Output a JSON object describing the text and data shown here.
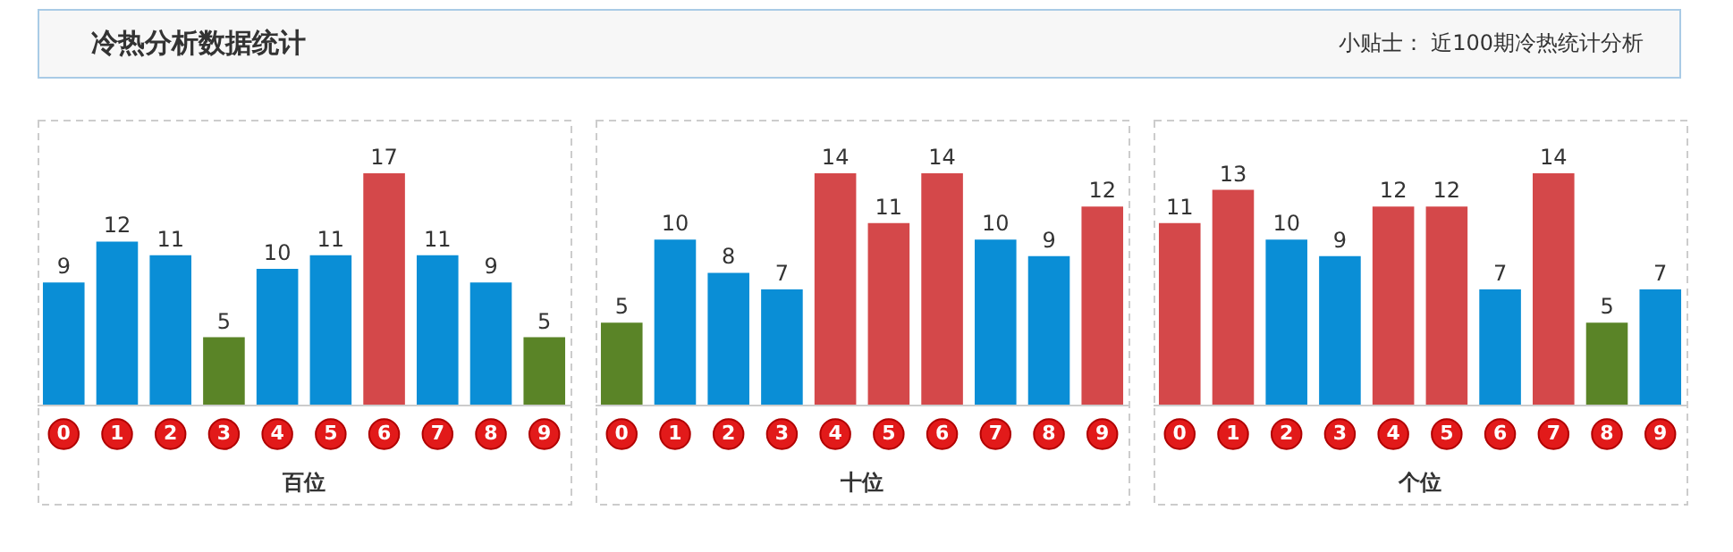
{
  "chart_data": [
    {
      "type": "bar",
      "title": "冷热分析数据统计",
      "annotations": [
        "小贴士： 近100期冷热统计分析"
      ],
      "xlabel": "百位",
      "categories": [
        "0",
        "1",
        "2",
        "3",
        "4",
        "5",
        "6",
        "7",
        "8",
        "9"
      ],
      "values": [
        9,
        12,
        11,
        5,
        10,
        11,
        17,
        11,
        9,
        5
      ],
      "colors": [
        "#0a8ed6",
        "#0a8ed6",
        "#0a8ed6",
        "#5a8427",
        "#0a8ed6",
        "#0a8ed6",
        "#d4484a",
        "#0a8ed6",
        "#0a8ed6",
        "#5a8427"
      ],
      "data_labels": true
    },
    {
      "type": "bar",
      "xlabel": "十位",
      "categories": [
        "0",
        "1",
        "2",
        "3",
        "4",
        "5",
        "6",
        "7",
        "8",
        "9"
      ],
      "values": [
        5,
        10,
        8,
        7,
        14,
        11,
        14,
        10,
        9,
        12
      ],
      "colors": [
        "#5a8427",
        "#0a8ed6",
        "#0a8ed6",
        "#0a8ed6",
        "#d4484a",
        "#d4484a",
        "#d4484a",
        "#0a8ed6",
        "#0a8ed6",
        "#d4484a"
      ],
      "data_labels": true
    },
    {
      "type": "bar",
      "xlabel": "个位",
      "categories": [
        "0",
        "1",
        "2",
        "3",
        "4",
        "5",
        "6",
        "7",
        "8",
        "9"
      ],
      "values": [
        11,
        13,
        10,
        9,
        12,
        12,
        7,
        14,
        5,
        7
      ],
      "colors": [
        "#d4484a",
        "#d4484a",
        "#0a8ed6",
        "#0a8ed6",
        "#d4484a",
        "#d4484a",
        "#0a8ed6",
        "#d4484a",
        "#5a8427",
        "#0a8ed6"
      ],
      "data_labels": true
    }
  ]
}
